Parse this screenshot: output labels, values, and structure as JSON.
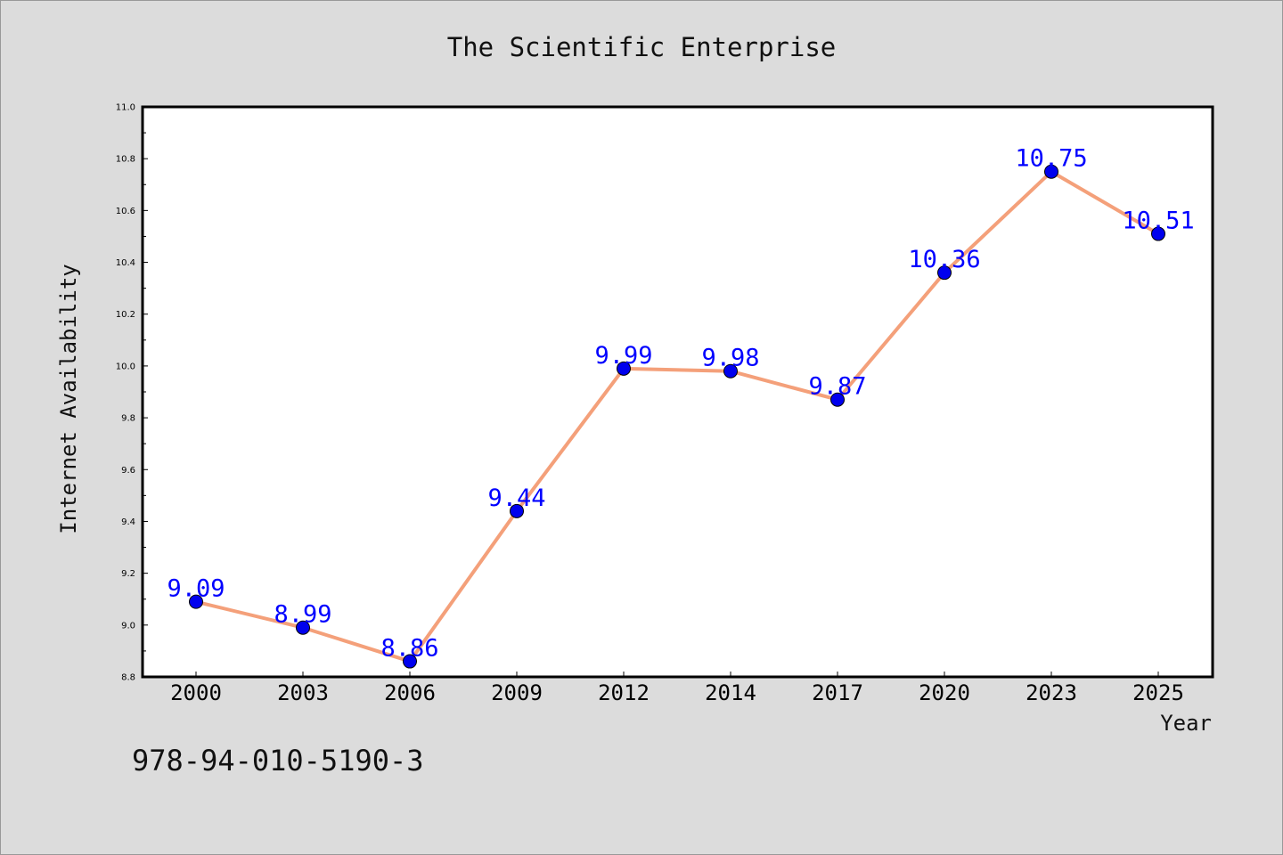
{
  "chart_data": {
    "type": "line",
    "title": "The Scientific Enterprise",
    "xlabel": "Year",
    "ylabel": "Internet Availability",
    "categories": [
      "2000",
      "2003",
      "2006",
      "2009",
      "2012",
      "2014",
      "2017",
      "2020",
      "2023",
      "2025"
    ],
    "series": [
      {
        "values": [
          9.09,
          8.99,
          8.86,
          9.44,
          9.99,
          9.98,
          9.87,
          10.36,
          10.75,
          10.51
        ]
      }
    ],
    "data_labels": [
      "9.09",
      "8.99",
      "8.86",
      "9.44",
      "9.99",
      "9.98",
      "9.87",
      "10.36",
      "10.75",
      "10.51"
    ],
    "ylim": [
      8.8,
      11.0
    ],
    "yticks": [
      "8.8",
      "9.0",
      "9.2",
      "9.4",
      "9.6",
      "9.8",
      "10.0",
      "10.2",
      "10.4",
      "10.6",
      "10.8",
      "11.0"
    ],
    "grid": false,
    "colors": {
      "line": "#f4a07a",
      "marker": "#0000ee",
      "label": "#0000ff",
      "background": "#dcdcdc"
    }
  },
  "footer": {
    "text": "978-94-010-5190-3"
  }
}
